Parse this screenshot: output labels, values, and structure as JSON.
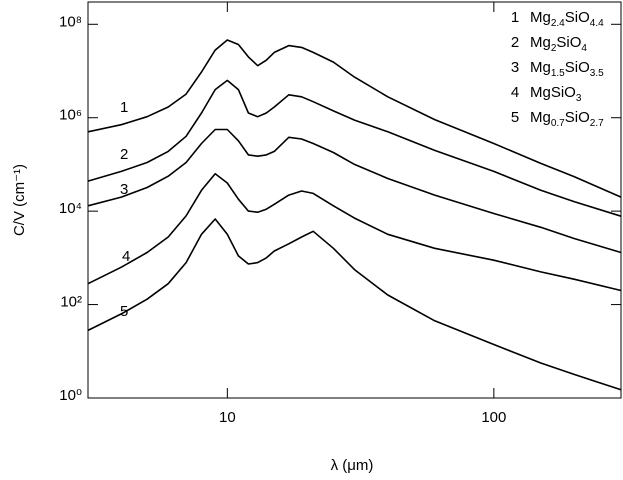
{
  "chart_data": {
    "type": "line",
    "xlabel": "λ (μm)",
    "ylabel": "C/V (cm⁻¹)",
    "xscale": "log",
    "yscale": "log",
    "xlim": [
      3,
      300
    ],
    "ylim": [
      1,
      300000000
    ],
    "xticks": [
      10,
      100
    ],
    "yticks": [
      {
        "value": 1,
        "label": "10⁰"
      },
      {
        "value": 100,
        "label": "10²"
      },
      {
        "value": 10000,
        "label": "10⁴"
      },
      {
        "value": 1000000,
        "label": "10⁶"
      },
      {
        "value": 100000000,
        "label": "10⁸"
      }
    ],
    "legend": "upper right",
    "x": [
      3,
      4,
      5,
      6,
      7,
      8,
      9,
      10,
      11,
      12,
      13,
      14,
      15,
      17,
      19,
      21,
      25,
      30,
      40,
      60,
      100,
      150,
      200,
      300
    ],
    "series": [
      {
        "label": "1",
        "name": "Mg2.4SiO4.4",
        "color": "#000000",
        "values": [
          500000.0,
          710000.0,
          1050000.0,
          1700000.0,
          3200000.0,
          9500000.0,
          28000000.0,
          46000000.0,
          37000000.0,
          20000000.0,
          13000000.0,
          17000000.0,
          25000000.0,
          35000000.0,
          32000000.0,
          25000000.0,
          15500000.0,
          7400000.0,
          2800000.0,
          910000.0,
          280000.0,
          105000.0,
          55000.0,
          20000.0
        ]
      },
      {
        "label": "2",
        "name": "Mg2SiO4",
        "color": "#000000",
        "values": [
          44000.0,
          71000.0,
          110000.0,
          190000.0,
          400000.0,
          1260000.0,
          4000000.0,
          6300000.0,
          4000000.0,
          1260000.0,
          1050000.0,
          1260000.0,
          1700000.0,
          3100000.0,
          2800000.0,
          2200000.0,
          1400000.0,
          890000.0,
          500000.0,
          200000.0,
          71000.0,
          28000.0,
          16000.0,
          7800.0
        ]
      },
      {
        "label": "3",
        "name": "Mg1.5SiO3.5",
        "color": "#000000",
        "values": [
          13000.0,
          20000.0,
          32000.0,
          56000.0,
          110000.0,
          280000.0,
          560000.0,
          560000.0,
          320000.0,
          160000.0,
          150000.0,
          160000.0,
          190000.0,
          380000.0,
          350000.0,
          280000.0,
          180000.0,
          100000.0,
          50000.0,
          22000.0,
          8900.0,
          4500.0,
          2600.0,
          1300.0
        ]
      },
      {
        "label": "4",
        "name": "MgSiO3",
        "color": "#000000",
        "values": [
          280,
          630,
          1300,
          2800,
          7900,
          28000.0,
          63000.0,
          40000.0,
          18000.0,
          10000.0,
          9500.0,
          11000.0,
          14000.0,
          22000.0,
          27000.0,
          24000.0,
          13000.0,
          7100.0,
          3200.0,
          1600.0,
          890,
          500,
          350,
          200
        ]
      },
      {
        "label": "5",
        "name": "Mg0.7SiO2.7",
        "color": "#000000",
        "values": [
          28,
          63,
          130,
          280,
          790,
          3200,
          6800,
          3200,
          1100,
          740,
          790,
          1000,
          1400,
          2000,
          2800,
          3700,
          1600,
          560,
          160,
          45,
          14,
          5.6,
          3.2,
          1.5
        ]
      }
    ]
  }
}
